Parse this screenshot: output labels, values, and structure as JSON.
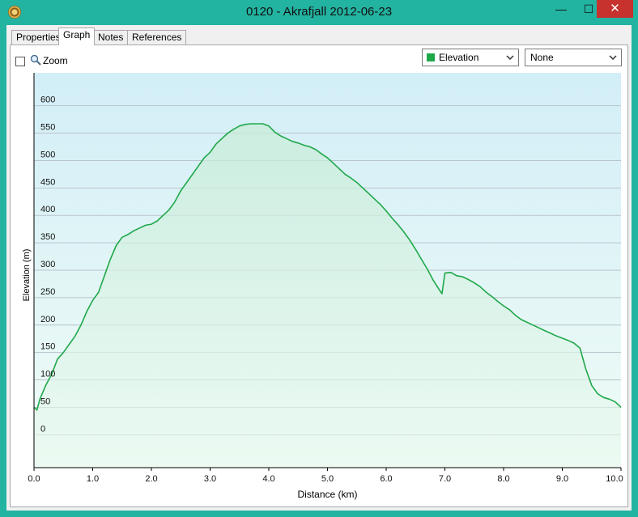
{
  "window": {
    "title": "0120 - Akrafjall 2012-06-23",
    "minimize_glyph": "—",
    "maximize_glyph": "☐",
    "close_glyph": "✕"
  },
  "tabs": [
    {
      "label": "Properties"
    },
    {
      "label": "Graph"
    },
    {
      "label": "Notes"
    },
    {
      "label": "References"
    }
  ],
  "toolbar": {
    "zoom_label": "Zoom",
    "primary_series_select": "Elevation",
    "secondary_series_select": "None"
  },
  "colors": {
    "line": "#1fa84a",
    "plot_top": "#d2eef7",
    "plot_bottom": "#f0fcf6"
  },
  "chart_data": {
    "type": "area",
    "xlabel": "Distance  (km)",
    "ylabel": "Elevation (m)",
    "xlim": [
      0,
      10
    ],
    "ylim": [
      -60,
      660
    ],
    "x_ticks": [
      "0.0",
      "1.0",
      "2.0",
      "3.0",
      "4.0",
      "5.0",
      "6.0",
      "7.0",
      "8.0",
      "9.0",
      "10.0"
    ],
    "y_ticks": [
      "0",
      "50",
      "100",
      "150",
      "200",
      "250",
      "300",
      "350",
      "400",
      "450",
      "500",
      "550",
      "600"
    ],
    "grid": true,
    "x": [
      0,
      0.05,
      0.1,
      0.2,
      0.3,
      0.4,
      0.5,
      0.6,
      0.7,
      0.8,
      0.9,
      1.0,
      1.1,
      1.2,
      1.3,
      1.4,
      1.5,
      1.6,
      1.7,
      1.8,
      1.9,
      2.0,
      2.1,
      2.2,
      2.3,
      2.4,
      2.5,
      2.6,
      2.7,
      2.8,
      2.9,
      3.0,
      3.1,
      3.2,
      3.3,
      3.4,
      3.5,
      3.6,
      3.7,
      3.8,
      3.9,
      4.0,
      4.1,
      4.2,
      4.3,
      4.4,
      4.5,
      4.6,
      4.7,
      4.8,
      4.9,
      5.0,
      5.1,
      5.2,
      5.3,
      5.4,
      5.5,
      5.6,
      5.7,
      5.8,
      5.9,
      6.0,
      6.1,
      6.2,
      6.3,
      6.4,
      6.5,
      6.6,
      6.7,
      6.8,
      6.9,
      6.95,
      7.0,
      7.1,
      7.2,
      7.3,
      7.4,
      7.5,
      7.6,
      7.7,
      7.8,
      7.9,
      8.0,
      8.1,
      8.2,
      8.3,
      8.4,
      8.5,
      8.6,
      8.7,
      8.8,
      8.9,
      9.0,
      9.1,
      9.2,
      9.3,
      9.4,
      9.5,
      9.6,
      9.7,
      9.8,
      9.9,
      10.0
    ],
    "values": [
      50,
      45,
      65,
      90,
      110,
      138,
      150,
      165,
      180,
      200,
      225,
      245,
      260,
      290,
      320,
      345,
      360,
      365,
      372,
      377,
      382,
      384,
      390,
      400,
      410,
      425,
      445,
      460,
      475,
      490,
      505,
      515,
      530,
      540,
      550,
      557,
      563,
      566,
      567,
      567,
      567,
      563,
      552,
      545,
      540,
      535,
      532,
      528,
      525,
      520,
      512,
      505,
      495,
      485,
      475,
      468,
      460,
      450,
      440,
      430,
      420,
      408,
      395,
      383,
      370,
      355,
      338,
      320,
      302,
      282,
      265,
      257,
      295,
      296,
      290,
      288,
      283,
      277,
      270,
      260,
      252,
      243,
      235,
      228,
      218,
      210,
      205,
      200,
      195,
      190,
      185,
      180,
      176,
      172,
      167,
      158,
      120,
      90,
      75,
      68,
      65,
      60,
      50
    ]
  }
}
